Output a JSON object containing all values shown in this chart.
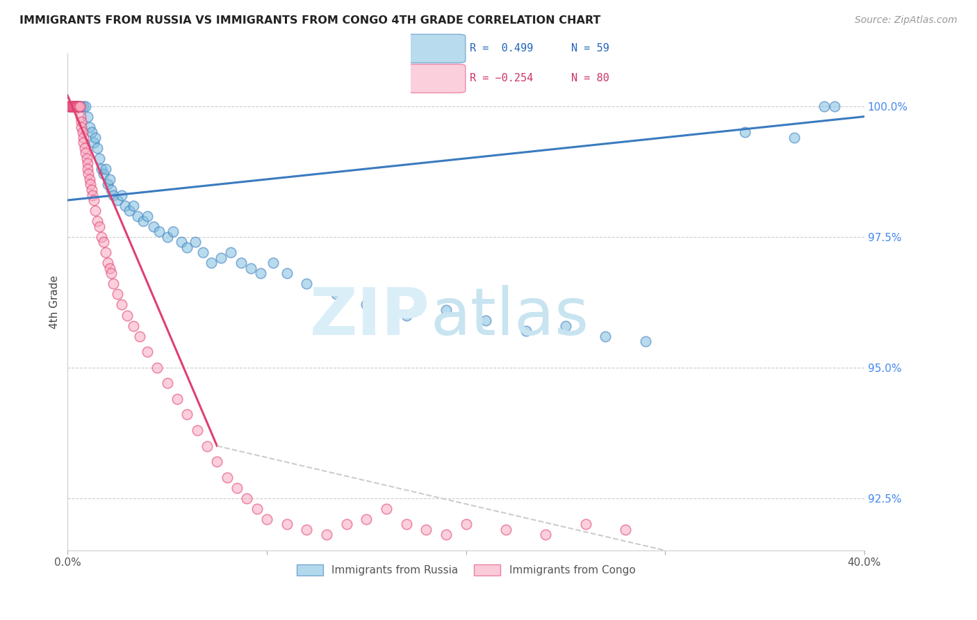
{
  "title": "IMMIGRANTS FROM RUSSIA VS IMMIGRANTS FROM CONGO 4TH GRADE CORRELATION CHART",
  "source": "Source: ZipAtlas.com",
  "ylabel": "4th Grade",
  "x_min": 0.0,
  "x_max": 40.0,
  "y_min": 91.5,
  "y_max": 101.0,
  "y_ticks": [
    92.5,
    95.0,
    97.5,
    100.0
  ],
  "y_tick_labels": [
    "92.5%",
    "95.0%",
    "97.5%",
    "100.0%"
  ],
  "legend_blue_label": "Immigrants from Russia",
  "legend_pink_label": "Immigrants from Congo",
  "R_blue": 0.499,
  "N_blue": 59,
  "R_pink": -0.254,
  "N_pink": 80,
  "blue_color": "#7fbfdf",
  "pink_color": "#f9a8c0",
  "blue_line_color": "#3a7bbf",
  "pink_line_color": "#e04070",
  "gray_dash_color": "#cccccc",
  "watermark_zip_color": "#daeef8",
  "watermark_atlas_color": "#c8e4f0",
  "blue_scatter_x": [
    0.3,
    0.4,
    0.5,
    0.6,
    0.7,
    0.8,
    0.9,
    1.0,
    1.1,
    1.2,
    1.3,
    1.4,
    1.5,
    1.6,
    1.7,
    1.8,
    1.9,
    2.0,
    2.1,
    2.2,
    2.3,
    2.5,
    2.7,
    2.9,
    3.1,
    3.3,
    3.5,
    3.8,
    4.0,
    4.3,
    4.6,
    5.0,
    5.3,
    5.7,
    6.0,
    6.4,
    6.8,
    7.2,
    7.7,
    8.2,
    8.7,
    9.2,
    9.7,
    10.3,
    11.0,
    12.0,
    13.5,
    15.0,
    17.0,
    19.0,
    21.0,
    23.0,
    25.0,
    27.0,
    29.0,
    34.0,
    36.5,
    38.0,
    38.5
  ],
  "blue_scatter_y": [
    100.0,
    100.0,
    100.0,
    100.0,
    100.0,
    100.0,
    100.0,
    99.8,
    99.6,
    99.5,
    99.3,
    99.4,
    99.2,
    99.0,
    98.8,
    98.7,
    98.8,
    98.5,
    98.6,
    98.4,
    98.3,
    98.2,
    98.3,
    98.1,
    98.0,
    98.1,
    97.9,
    97.8,
    97.9,
    97.7,
    97.6,
    97.5,
    97.6,
    97.4,
    97.3,
    97.4,
    97.2,
    97.0,
    97.1,
    97.2,
    97.0,
    96.9,
    96.8,
    97.0,
    96.8,
    96.6,
    96.4,
    96.2,
    96.0,
    96.1,
    95.9,
    95.7,
    95.8,
    95.6,
    95.5,
    99.5,
    99.4,
    100.0,
    100.0
  ],
  "pink_scatter_x": [
    0.05,
    0.1,
    0.1,
    0.15,
    0.15,
    0.2,
    0.2,
    0.25,
    0.25,
    0.3,
    0.3,
    0.35,
    0.4,
    0.4,
    0.45,
    0.45,
    0.5,
    0.5,
    0.55,
    0.6,
    0.6,
    0.65,
    0.7,
    0.7,
    0.75,
    0.8,
    0.8,
    0.85,
    0.9,
    0.95,
    1.0,
    1.0,
    1.05,
    1.1,
    1.15,
    1.2,
    1.25,
    1.3,
    1.4,
    1.5,
    1.6,
    1.7,
    1.8,
    1.9,
    2.0,
    2.1,
    2.2,
    2.3,
    2.5,
    2.7,
    3.0,
    3.3,
    3.6,
    4.0,
    4.5,
    5.0,
    5.5,
    6.0,
    6.5,
    7.0,
    7.5,
    8.0,
    8.5,
    9.0,
    9.5,
    10.0,
    11.0,
    12.0,
    13.0,
    14.0,
    15.0,
    16.0,
    17.0,
    18.0,
    19.0,
    20.0,
    22.0,
    24.0,
    26.0,
    28.0
  ],
  "pink_scatter_y": [
    100.0,
    100.0,
    100.0,
    100.0,
    100.0,
    100.0,
    100.0,
    100.0,
    100.0,
    100.0,
    100.0,
    100.0,
    100.0,
    100.0,
    100.0,
    100.0,
    100.0,
    100.0,
    100.0,
    100.0,
    100.0,
    99.8,
    99.7,
    99.6,
    99.5,
    99.4,
    99.3,
    99.2,
    99.1,
    99.0,
    98.9,
    98.8,
    98.7,
    98.6,
    98.5,
    98.4,
    98.3,
    98.2,
    98.0,
    97.8,
    97.7,
    97.5,
    97.4,
    97.2,
    97.0,
    96.9,
    96.8,
    96.6,
    96.4,
    96.2,
    96.0,
    95.8,
    95.6,
    95.3,
    95.0,
    94.7,
    94.4,
    94.1,
    93.8,
    93.5,
    93.2,
    92.9,
    92.7,
    92.5,
    92.3,
    92.1,
    92.0,
    91.9,
    91.8,
    92.0,
    92.1,
    92.3,
    92.0,
    91.9,
    91.8,
    92.0,
    91.9,
    91.8,
    92.0,
    91.9
  ],
  "blue_line_x0": 0.0,
  "blue_line_x1": 40.0,
  "blue_line_y0": 98.2,
  "blue_line_y1": 99.8,
  "pink_line_x0": 0.0,
  "pink_line_x1": 7.5,
  "pink_line_y0": 100.2,
  "pink_line_y1": 93.5,
  "gray_dash_x0": 7.5,
  "gray_dash_x1": 30.0,
  "gray_dash_y0": 93.5,
  "gray_dash_y1": 91.5
}
